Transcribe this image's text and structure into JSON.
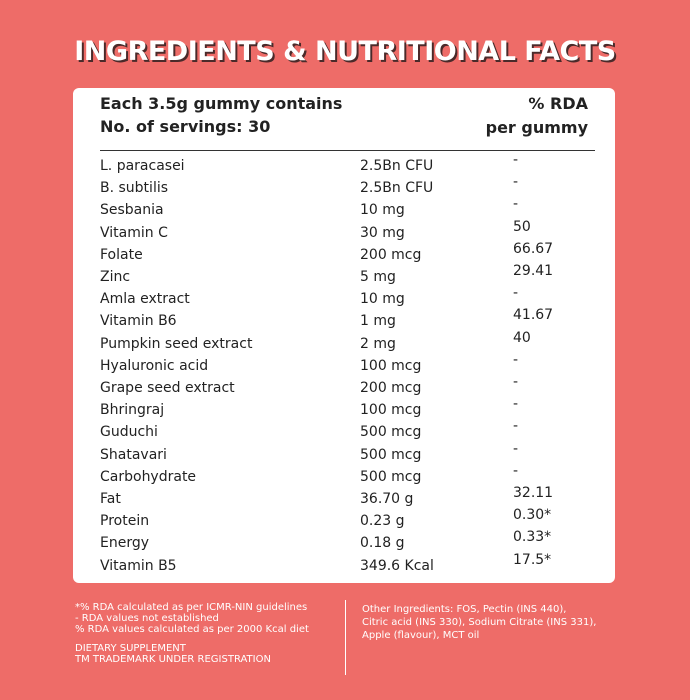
{
  "title": "INGREDIENTS & NUTRITIONAL FACTS",
  "table": {
    "header": {
      "left": [
        "Each 3.5g gummy contains",
        "No. of servings: 30"
      ],
      "right": [
        "% RDA",
        "per gummy"
      ]
    },
    "rows": [
      [
        "L. paracasei",
        "2.5Bn CFU",
        "-"
      ],
      [
        "B. subtilis",
        "2.5Bn CFU",
        "-"
      ],
      [
        "Sesbania",
        "10 mg",
        "-"
      ],
      [
        "Vitamin C",
        "30 mg",
        "50"
      ],
      [
        "Folate",
        "200 mcg",
        "66.67"
      ],
      [
        "Zinc",
        "5 mg",
        "29.41"
      ],
      [
        "Amla extract",
        "10 mg",
        "-"
      ],
      [
        "Vitamin B6",
        "1 mg",
        "41.67"
      ],
      [
        "Pumpkin seed extract",
        "2 mg",
        "40"
      ],
      [
        "Hyaluronic acid",
        "100 mcg",
        "-"
      ],
      [
        "Grape seed extract",
        "200 mcg",
        "-"
      ],
      [
        "Bhringraj",
        "100 mcg",
        "-"
      ],
      [
        "Guduchi",
        "500 mcg",
        "-"
      ],
      [
        "Shatavari",
        "500 mcg",
        "-"
      ],
      [
        "Carbohydrate",
        "500 mcg",
        "-"
      ],
      [
        "Fat",
        "36.70 g",
        "32.11"
      ],
      [
        "Protein",
        "0.23 g",
        "0.30*"
      ],
      [
        "Energy",
        "0.18 g",
        "0.33*"
      ],
      [
        "Vitamin B5",
        "349.6 Kcal",
        "17.5*"
      ]
    ]
  },
  "footnotes": {
    "rda": [
      "*% RDA calculated as per ICMR-NIN guidelines",
      "- RDA values not established",
      "% RDA values calculated as per 2000 Kcal diet"
    ],
    "notes": [
      "DIETARY SUPPLEMENT",
      "TM TRADEMARK UNDER REGISTRATION"
    ],
    "other_ingredients": [
      "Other Ingredients: FOS, Pectin (INS 440),",
      "Citric acid (INS 330), Sodium Citrate (INS 331),",
      "Apple (flavour), MCT oil"
    ]
  }
}
